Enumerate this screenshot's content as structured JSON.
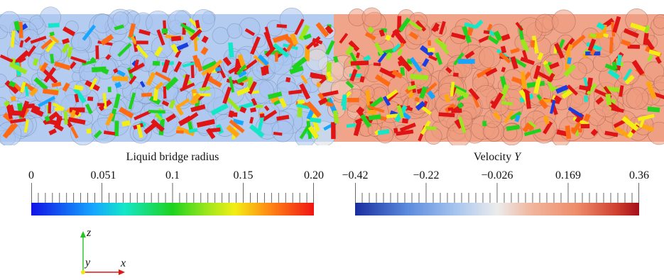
{
  "colorbars": [
    {
      "title": "Liquid bridge radius",
      "ticks": [
        "0",
        "0.051",
        "0.1",
        "0.15",
        "0.20"
      ],
      "range": [
        0,
        0.2
      ],
      "colors": [
        "#1212e6",
        "#16a6ff",
        "#14e6c8",
        "#1ed21e",
        "#9be61e",
        "#f3ee14",
        "#ff8a14",
        "#f01414"
      ]
    },
    {
      "title_prefix": "Velocity ",
      "title_var": "Y",
      "ticks": [
        "−0.42",
        "−0.22",
        "−0.026",
        "0.169",
        "0.36"
      ],
      "range": [
        -0.42,
        0.36
      ],
      "colors": [
        "#1a2e9e",
        "#5a88dc",
        "#a9c6ef",
        "#ececec",
        "#f0b69e",
        "#ee8c6a",
        "#d04030",
        "#a30e1a"
      ]
    }
  ],
  "axes": {
    "z": "z",
    "y": "y",
    "x": "x"
  },
  "scene_colors": {
    "particle_left": "#a9c4ee",
    "particle_right": "#ee9a7e",
    "bond_palette": [
      "#e01414",
      "#f01414",
      "#ff6a14",
      "#ffa514",
      "#f3ee14",
      "#9be61e",
      "#1ed21e",
      "#14e6c8",
      "#16a6ff",
      "#1a3ee0"
    ]
  }
}
